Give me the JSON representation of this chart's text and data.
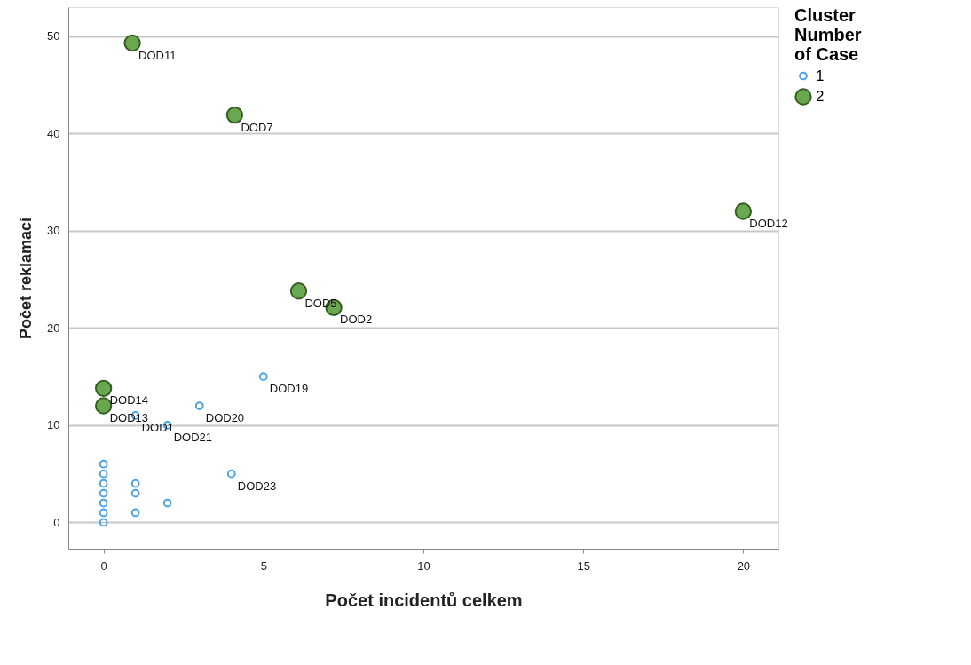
{
  "chart_data": {
    "type": "scatter",
    "xlabel": "Počet incidentů celkem",
    "ylabel": "Počet reklamací",
    "legend_title": "Cluster Number of Case",
    "legend": "top right",
    "grid": "y",
    "marker": "circle",
    "xlim": [
      -1.1,
      21.1
    ],
    "ylim": [
      -2.7,
      53
    ],
    "xticks": [
      0,
      5,
      10,
      15,
      20
    ],
    "yticks": [
      0,
      10,
      20,
      30,
      40,
      50
    ],
    "series": [
      {
        "name": "1",
        "color": "#4aa3e8",
        "x": [
          0,
          0,
          0,
          0,
          0,
          0,
          0,
          1,
          1,
          1,
          1,
          2,
          2,
          3,
          4,
          5
        ],
        "values": [
          0,
          1,
          2,
          3,
          4,
          5,
          6,
          1,
          3,
          4,
          11,
          2,
          10,
          12,
          5,
          15
        ],
        "value_labels": [
          null,
          null,
          null,
          null,
          null,
          null,
          null,
          null,
          null,
          null,
          "DOD1",
          null,
          "DOD21",
          "DOD20",
          "DOD23",
          "DOD19"
        ]
      },
      {
        "name": "2",
        "color": "#6aa84f",
        "x": [
          0.9,
          4.1,
          20,
          6.1,
          7.2,
          0,
          0
        ],
        "values": [
          49.3,
          41.9,
          32,
          23.8,
          22.1,
          13.8,
          12
        ],
        "value_labels": [
          "DOD11",
          "DOD7",
          "DOD12",
          "DOD5",
          "DOD2",
          "DOD14",
          "DOD13"
        ]
      }
    ]
  }
}
